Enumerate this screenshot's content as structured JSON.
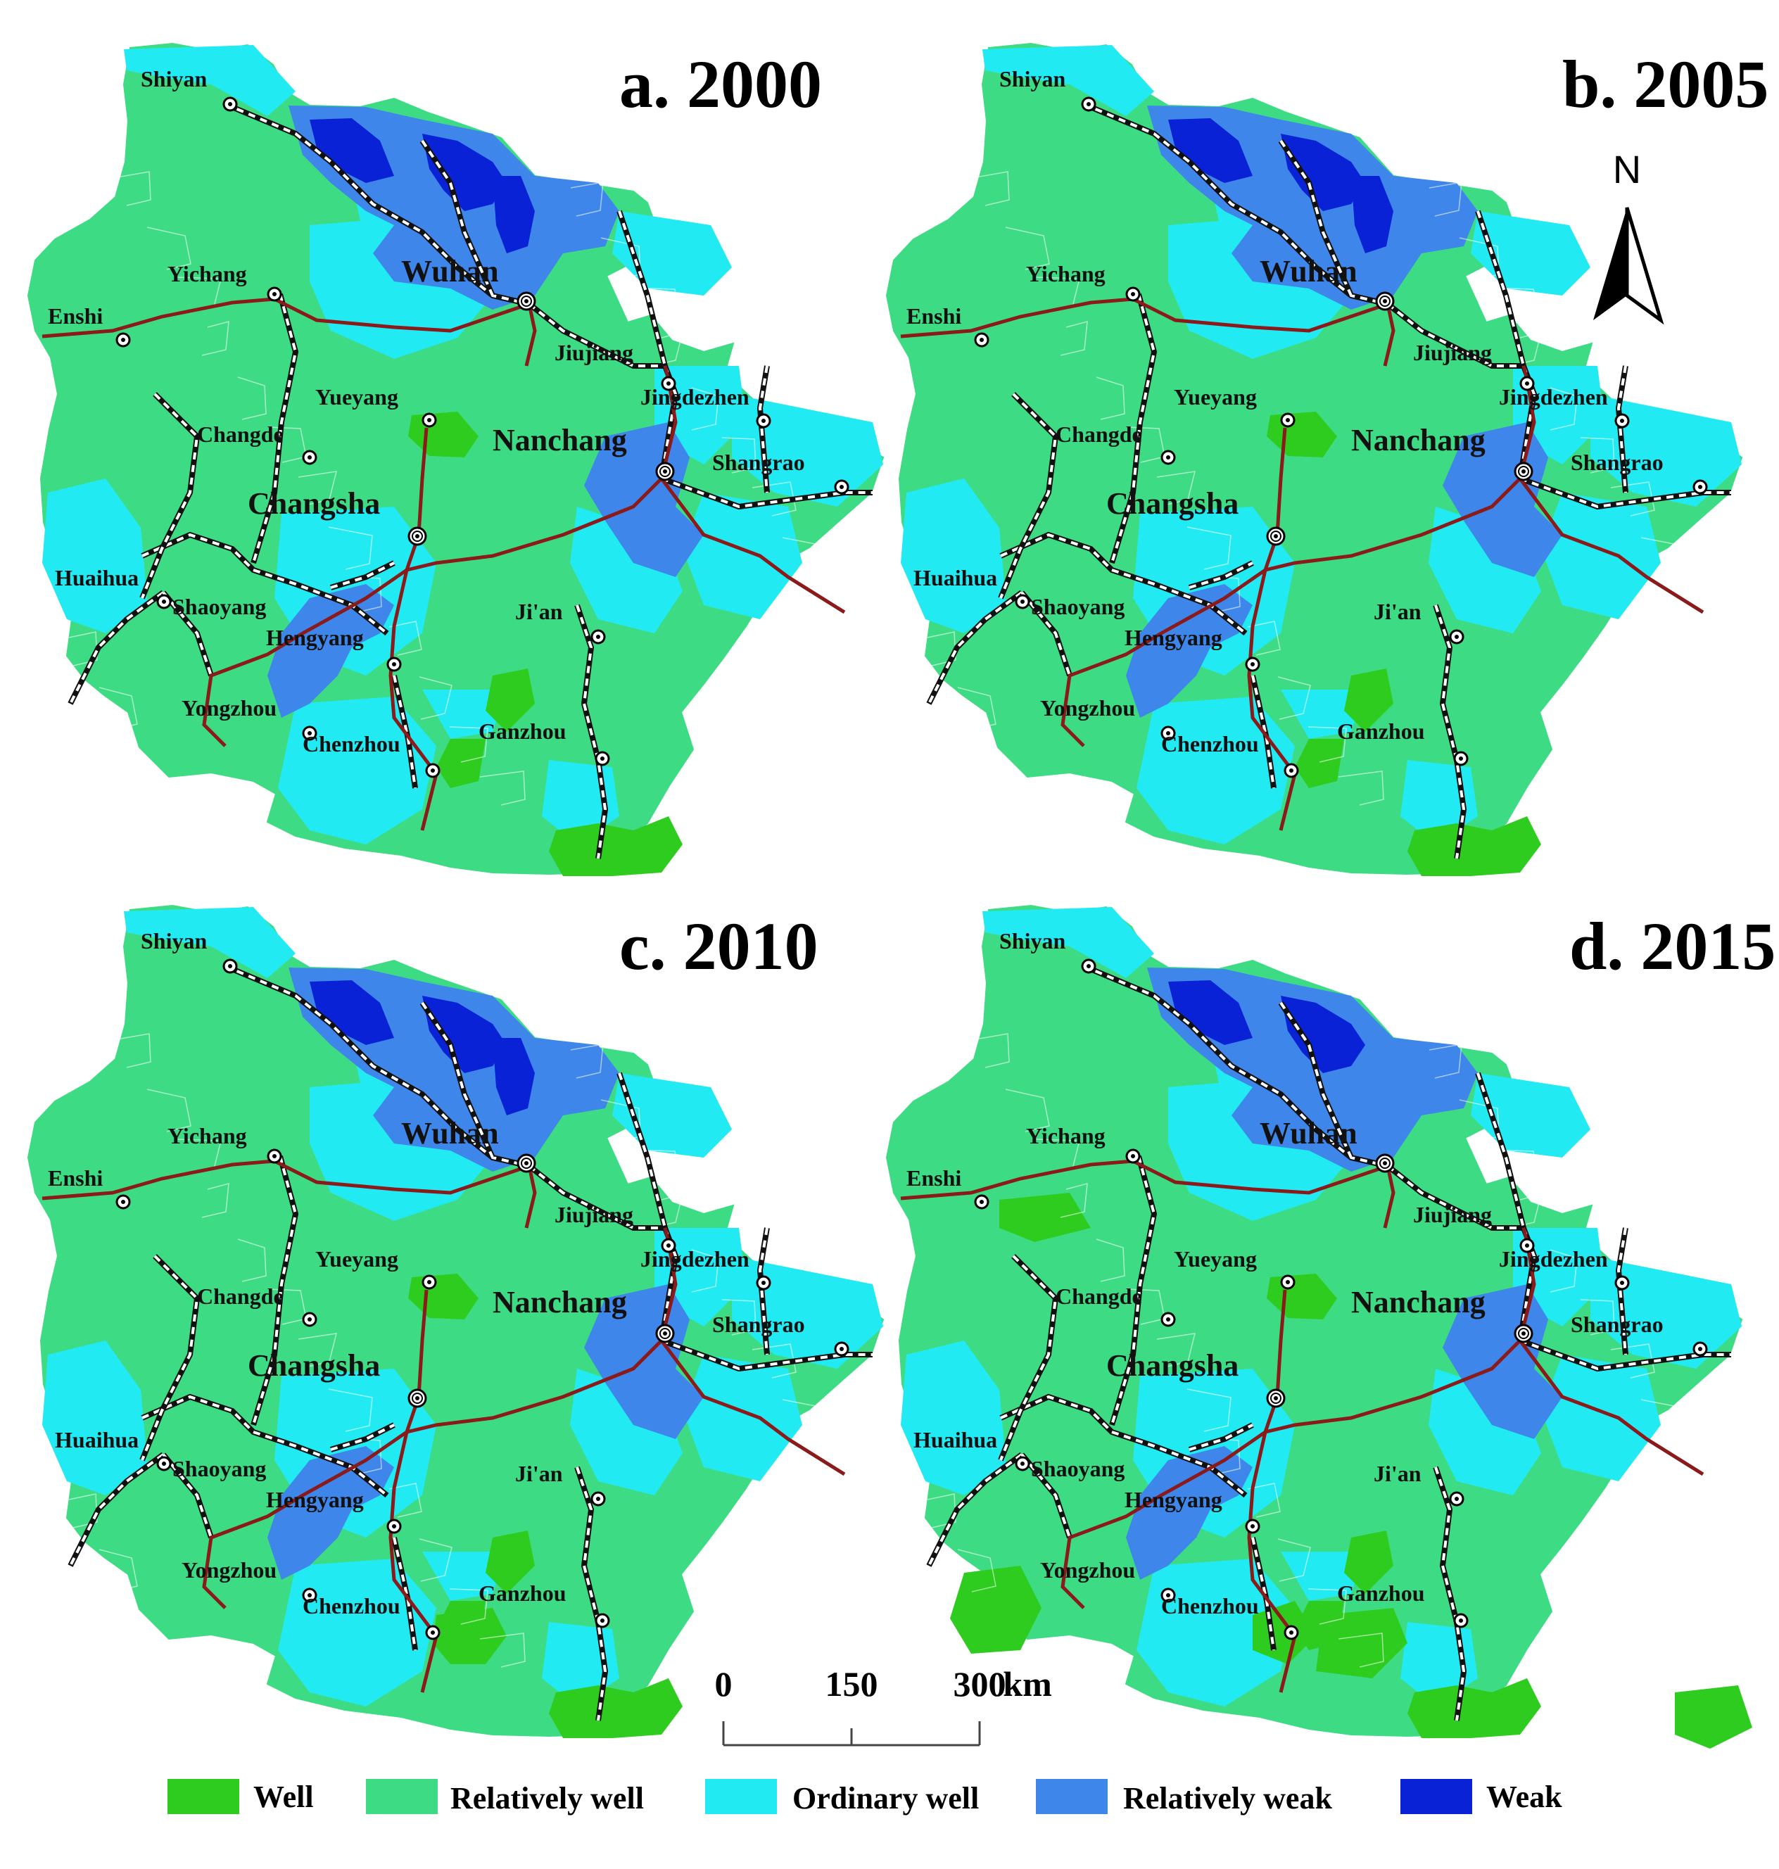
{
  "legend": [
    {
      "label": "Well",
      "color": "#2ecc1f"
    },
    {
      "label": "Relatively well",
      "color": "#3ddc84"
    },
    {
      "label": "Ordinary well",
      "color": "#22eaf2"
    },
    {
      "label": "Relatively weak",
      "color": "#3f86ea"
    },
    {
      "label": "Weak",
      "color": "#0a22d6"
    }
  ],
  "rail_colors": {
    "highspeed": "#8b1a1a",
    "conventional": "#111111"
  },
  "north_arrow": {
    "label": "N"
  },
  "scale_bar": {
    "ticks": [
      "0",
      "150",
      "300"
    ],
    "unit": "km"
  },
  "panels": [
    {
      "title": "a. 2000",
      "labels": {
        "Shiyan": "Shiyan",
        "Yichang": "Yichang",
        "Enshi": "Enshi",
        "Wuhan": "Wuhan",
        "Jiujiang": "Jiujiang",
        "Yueyang": "Yueyang",
        "Jingdezhen": "Jingdezhen",
        "Changde": "Changde",
        "Nanchang": "Nanchang",
        "Shangrao": "Shangrao",
        "Changsha": "Changsha",
        "Huaihua": "Huaihua",
        "Shaoyang": "Shaoyang",
        "Ji'an": "Ji'an",
        "Hengyang": "Hengyang",
        "Yongzhou": "Yongzhou",
        "Ganzhou": "Ganzhou",
        "Chenzhou": "Chenzhou"
      },
      "zones": [
        {
          "class": "Relatively weak",
          "icon": "weak-zone"
        },
        {
          "class": "Weak",
          "icon": "weak-zone"
        }
      ]
    },
    {
      "title": "b. 2005",
      "labels": {
        "Shiyan": "Shiyan",
        "Yichang": "Yichang",
        "Enshi": "Enshi",
        "Wuhan": "Wuhan",
        "Jiujiang": "Jiujiang",
        "Yueyang": "Yueyang",
        "Jingdezhen": "Jingdezhen",
        "Changde": "Changde",
        "Nanchang": "Nanchang",
        "Shangrao": "Shangrao",
        "Changsha": "Changsha",
        "Huaihua": "Huaihua",
        "Shaoyang": "Shaoyang",
        "Ji'an": "Ji'an",
        "Hengyang": "Hengyang",
        "Yongzhou": "Yongzhou",
        "Ganzhou": "Ganzhou",
        "Chenzhou": "Chenzhou"
      }
    },
    {
      "title": "c. 2010",
      "labels": {
        "Shiyan": "Shiyan",
        "Yichang": "Yichang",
        "Enshi": "Enshi",
        "Wuhan": "Wuhan",
        "Jiujiang": "Jiujiang",
        "Yueyang": "Yueyang",
        "Jingdezhen": "Jingdezhen",
        "Changde": "Changde",
        "Nanchang": "Nanchang",
        "Shangrao": "Shangrao",
        "Changsha": "Changsha",
        "Huaihua": "Huaihua",
        "Shaoyang": "Shaoyang",
        "Ji'an": "Ji'an",
        "Hengyang": "Hengyang",
        "Yongzhou": "Yongzhou",
        "Ganzhou": "Ganzhou",
        "Chenzhou": "Chenzhou"
      }
    },
    {
      "title": "d. 2015",
      "labels": {
        "Shiyan": "Shiyan",
        "Yichang": "Yichang",
        "Enshi": "Enshi",
        "Wuhan": "Wuhan",
        "Jiujiang": "Jiujiang",
        "Yueyang": "Yueyang",
        "Jingdezhen": "Jingdezhen",
        "Changde": "Changde",
        "Nanchang": "Nanchang",
        "Shangrao": "Shangrao",
        "Changsha": "Changsha",
        "Huaihua": "Huaihua",
        "Shaoyang": "Shaoyang",
        "Ji'an": "Ji'an",
        "Hengyang": "Hengyang",
        "Yongzhou": "Yongzhou",
        "Ganzhou": "Ganzhou",
        "Chenzhou": "Chenzhou"
      }
    }
  ]
}
